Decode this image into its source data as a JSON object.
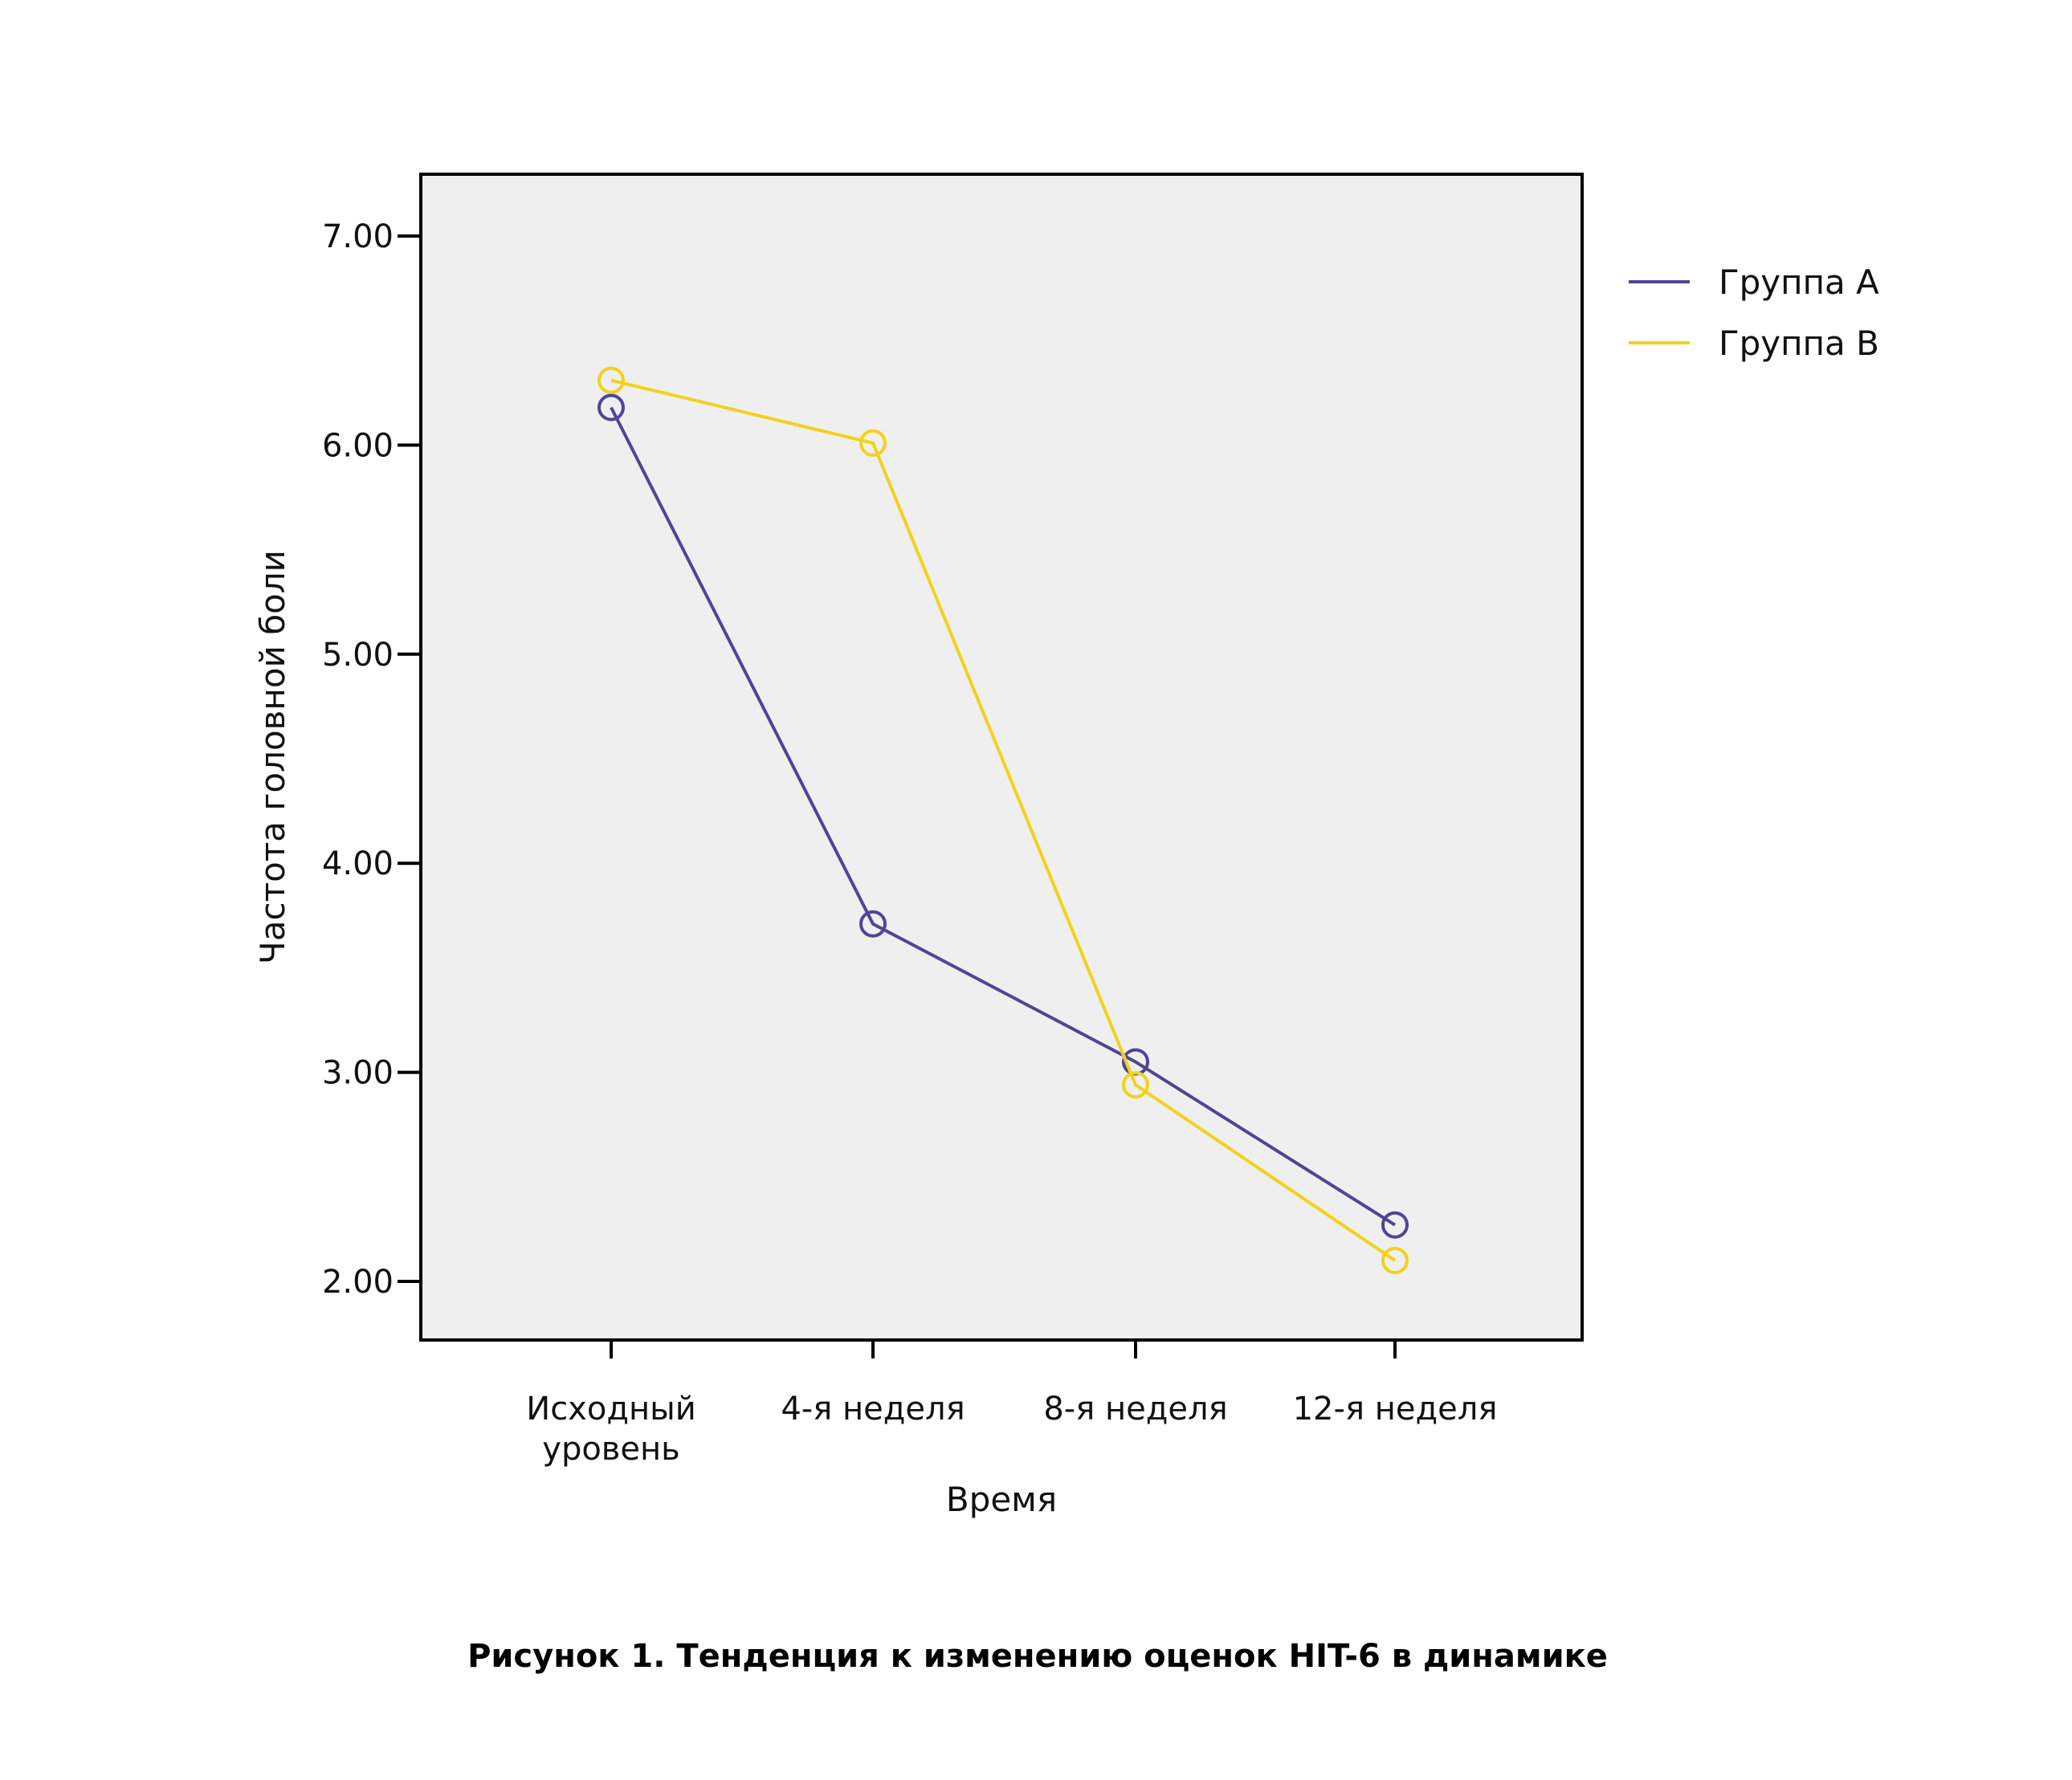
{
  "chart_data": {
    "type": "line",
    "title": "",
    "xlabel": "Время",
    "ylabel": "Частота головной боли",
    "categories": [
      [
        "Исходный",
        "уровень"
      ],
      [
        "4-я неделя"
      ],
      [
        "8-я неделя"
      ],
      [
        "12-я неделя"
      ]
    ],
    "ylim": [
      1.72,
      7.3
    ],
    "yticks": [
      "2.00",
      "3.00",
      "4.00",
      "5.00",
      "6.00",
      "7.00"
    ],
    "grid": false,
    "legend_position": "right",
    "series": [
      {
        "name": "Группа А",
        "color": "#4f4596",
        "values": [
          6.18,
          3.71,
          3.05,
          2.27
        ]
      },
      {
        "name": "Группа В",
        "color": "#f2d21a",
        "values": [
          6.31,
          6.01,
          2.94,
          2.1
        ]
      }
    ],
    "plot_background": "#efefef",
    "marker": "open-circle"
  },
  "caption": "Рисунок 1. Тенденция к изменению оценок HIT-6 в динамике"
}
